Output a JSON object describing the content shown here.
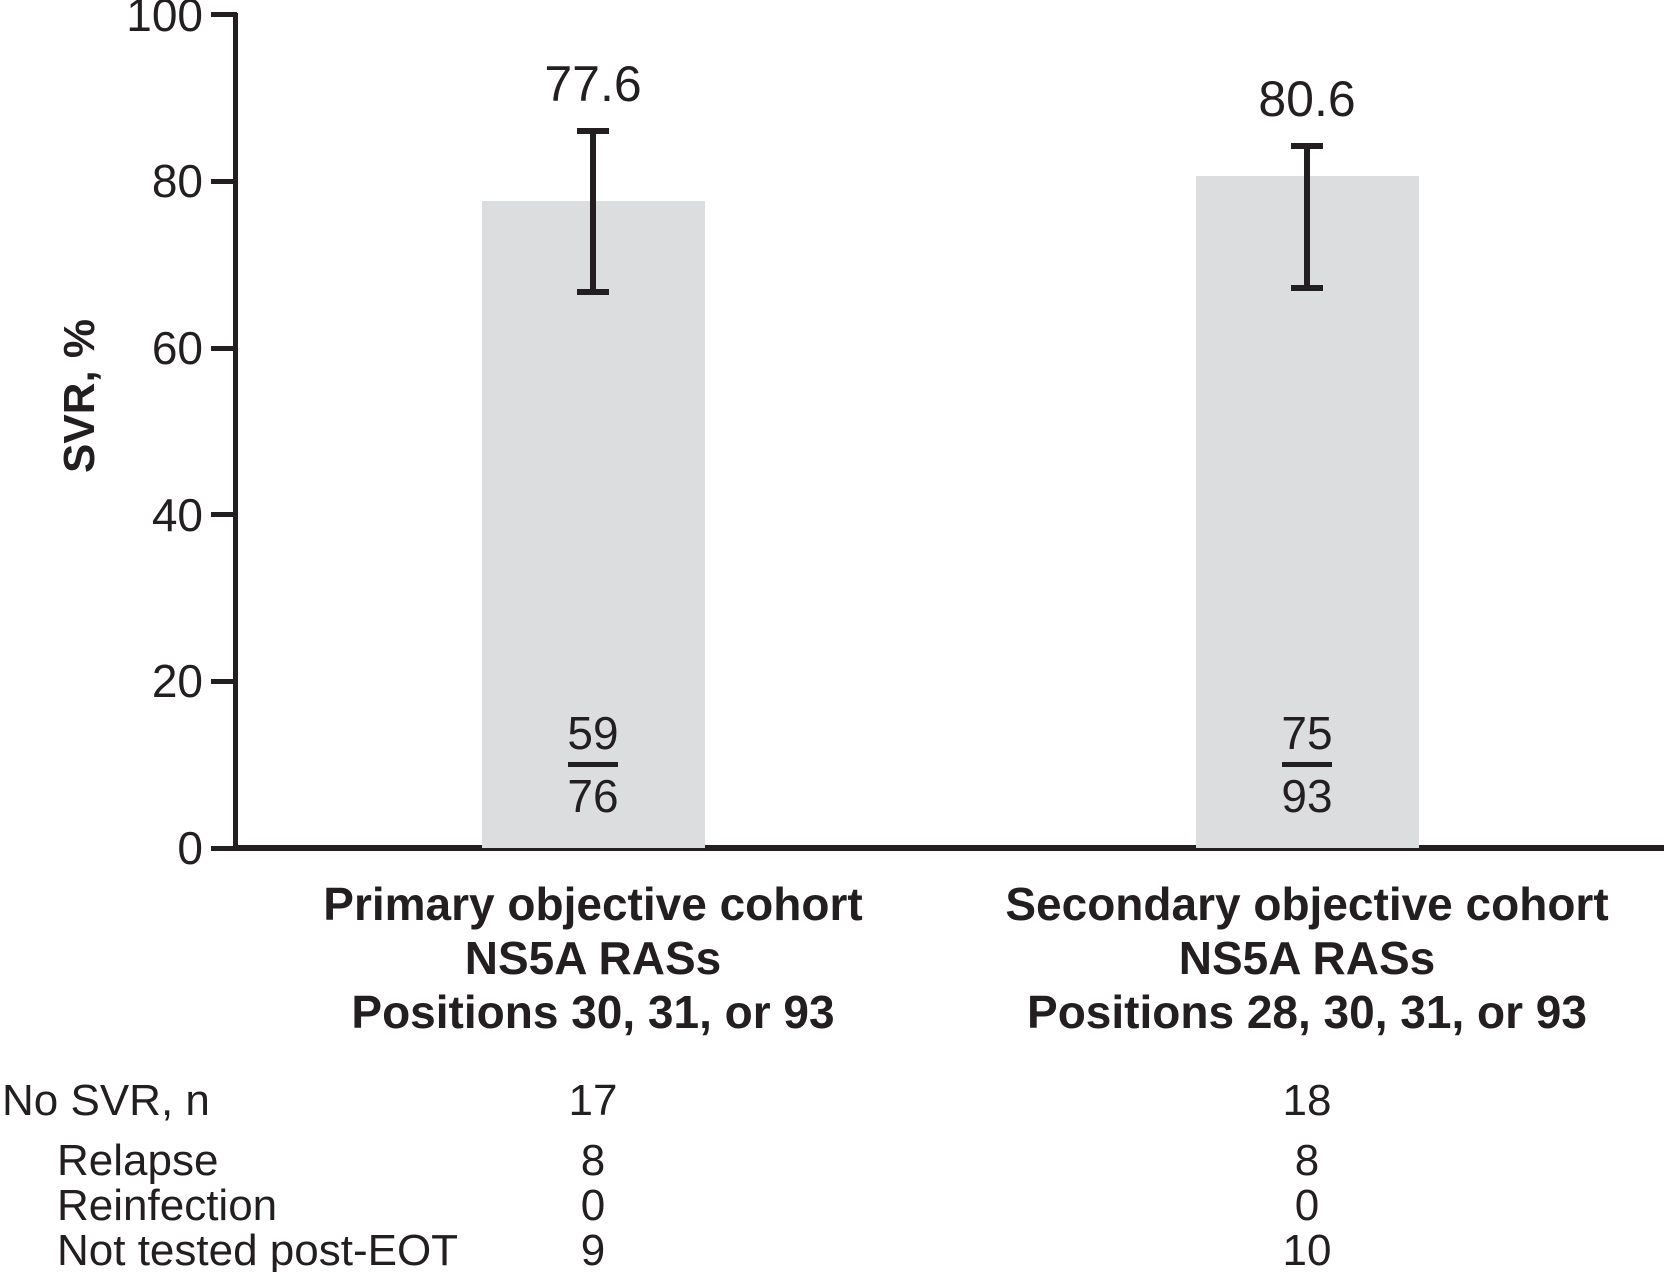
{
  "figure": {
    "background": "#ffffff",
    "ink_color": "#231f20"
  },
  "chart_data": {
    "type": "bar",
    "title": "",
    "xlabel": "",
    "ylabel": "SVR, %",
    "ylim": [
      0,
      100
    ],
    "yticks": [
      0,
      20,
      40,
      60,
      80,
      100
    ],
    "grid": false,
    "legend": "none",
    "bar_color": "#dcddde",
    "bars": [
      {
        "category_lines": [
          "Primary objective cohort",
          "NS5A RASs",
          "Positions 30, 31, or 93"
        ],
        "value": 77.6,
        "value_label": "77.6",
        "ci_low": 66.7,
        "ci_high": 86.0,
        "fraction_numerator": "59",
        "fraction_denominator": "76"
      },
      {
        "category_lines": [
          "Secondary objective cohort",
          "NS5A RASs",
          "Positions 28, 30, 31, or 93"
        ],
        "value": 80.6,
        "value_label": "80.6",
        "ci_low": 67.2,
        "ci_high": 84.2,
        "fraction_numerator": "75",
        "fraction_denominator": "93"
      }
    ]
  },
  "table": {
    "rows": [
      {
        "label": "No SVR, n",
        "indent": false,
        "values": [
          "17",
          "18"
        ]
      },
      {
        "label": "Relapse",
        "indent": true,
        "values": [
          "8",
          "8"
        ]
      },
      {
        "label": "Reinfection",
        "indent": true,
        "values": [
          "0",
          "0"
        ]
      },
      {
        "label": "Not tested post-EOT",
        "indent": true,
        "values": [
          "9",
          "10"
        ]
      }
    ]
  }
}
